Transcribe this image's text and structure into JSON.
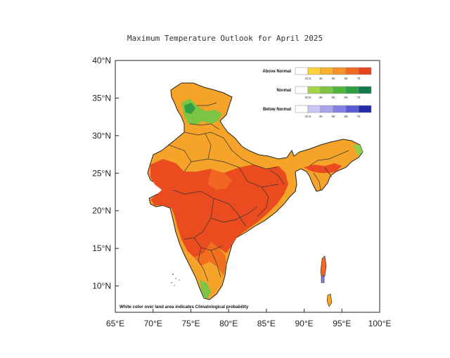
{
  "title": "Maximum Temperature Outlook for April 2025",
  "axes": {
    "x_ticks": [
      "65°E",
      "70°E",
      "75°E",
      "80°E",
      "85°E",
      "90°E",
      "95°E",
      "100°E"
    ],
    "y_ticks": [
      "40°N",
      "35°N",
      "30°N",
      "25°N",
      "20°N",
      "15°N",
      "10°N"
    ],
    "lon_range": [
      65,
      100
    ],
    "lat_range": [
      6.5,
      40
    ]
  },
  "legend": {
    "groups": [
      {
        "label": "Above Normal",
        "colors": [
          "#ffffff",
          "#fcd13a",
          "#f7b12a",
          "#f59328",
          "#f26a22",
          "#e84420"
        ]
      },
      {
        "label": "Normal",
        "colors": [
          "#ffffff",
          "#a6d34c",
          "#7cc443",
          "#52b53a",
          "#2ea043",
          "#137a4e"
        ]
      },
      {
        "label": "Below Normal",
        "colors": [
          "#ffffff",
          "#c7c6f5",
          "#a8a5ef",
          "#8580e6",
          "#5d5ad7",
          "#232aa8"
        ]
      }
    ],
    "ticks": [
      "33.5",
      "45",
      "55",
      "65",
      "75"
    ]
  },
  "note": "White color over land area indicates Climatological probability",
  "colors": {
    "above_high": "#e84420",
    "above_mid": "#f26a22",
    "above_low": "#f5a329",
    "normal": "#7cc443",
    "normal_dark": "#2ea043"
  }
}
